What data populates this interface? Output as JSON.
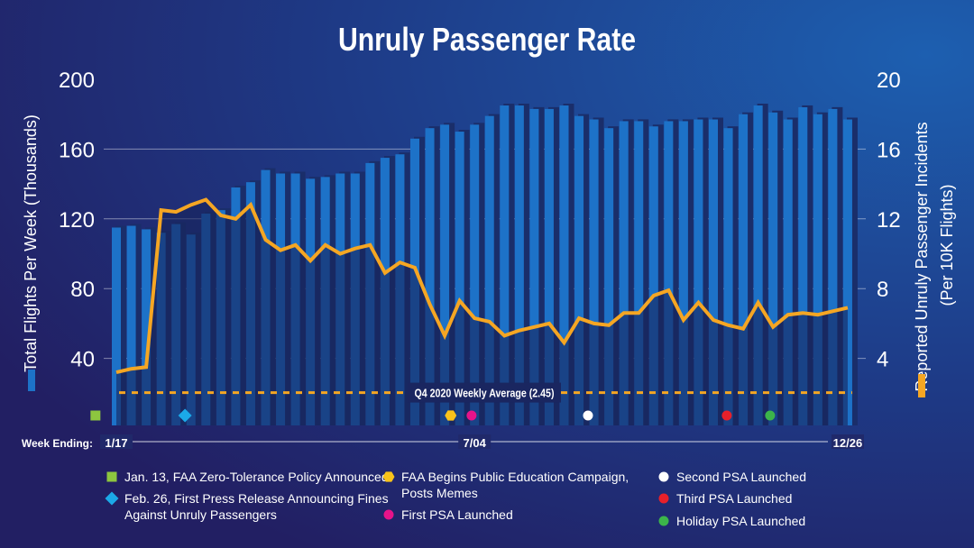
{
  "chart_data": {
    "type": "bar+line",
    "title": "Unruly Passenger Rate",
    "xlabel": "Week Ending:",
    "x_tick_labels": [
      {
        "week": 1,
        "label": "1/17"
      },
      {
        "week": 25,
        "label": "7/04"
      },
      {
        "week": 50,
        "label": "12/26"
      }
    ],
    "y_left": {
      "label": "Total Flights Per Week (Thousands)",
      "ticks": [
        40,
        80,
        120,
        160,
        200
      ],
      "range": [
        0,
        200
      ]
    },
    "y_right": {
      "label": "Reported Unruly Passenger Incidents",
      "sublabel": "(Per 10K Flights)",
      "ticks": [
        4,
        8,
        12,
        16,
        20
      ],
      "range": [
        0,
        20
      ]
    },
    "grid": true,
    "series": [
      {
        "kind": "bar",
        "axis": "left",
        "color": "#1d72c8",
        "values": [
          115,
          116,
          114,
          112,
          117,
          111,
          123,
          125,
          138,
          141,
          148,
          146,
          146,
          143,
          144,
          146,
          146,
          152,
          155,
          157,
          166,
          172,
          174,
          170,
          174,
          179,
          185,
          185,
          183,
          183,
          185,
          179,
          177,
          172,
          176,
          176,
          173,
          176,
          176,
          177,
          177,
          172,
          180,
          185,
          181,
          177,
          184,
          180,
          183,
          177
        ]
      },
      {
        "kind": "line",
        "axis": "right",
        "color": "#f5a623",
        "values": [
          3.2,
          3.4,
          3.5,
          12.5,
          12.4,
          12.8,
          13.1,
          12.2,
          12.0,
          12.8,
          10.8,
          10.2,
          10.5,
          9.6,
          10.5,
          10.0,
          10.3,
          10.5,
          8.9,
          9.5,
          9.2,
          7.1,
          5.3,
          7.3,
          6.3,
          6.1,
          5.3,
          5.6,
          5.8,
          6.0,
          4.9,
          6.3,
          6.0,
          5.9,
          6.6,
          6.6,
          7.6,
          7.9,
          6.2,
          7.2,
          6.2,
          5.9,
          5.7,
          7.2,
          5.8,
          6.5,
          6.6,
          6.5,
          6.7,
          6.9
        ]
      }
    ],
    "reference_line": {
      "label": "Q4 2020 Weekly Average (2.45)",
      "value": 2.45,
      "color": "#f5a623"
    },
    "events": [
      {
        "week": 0.6,
        "shape": "square",
        "color": "#8dc63f",
        "label": "Jan. 13, FAA Zero-Tolerance Policy Announced"
      },
      {
        "week": 6.6,
        "shape": "diamond",
        "color": "#1ba9e8",
        "label": "Feb. 26, First Press Release Announcing Fines",
        "label2": "Against Unruly Passengers"
      },
      {
        "week": 24.4,
        "shape": "hexagon",
        "color": "#f9c31a",
        "label": "FAA Begins Public Education Campaign,",
        "label2": "Posts Memes"
      },
      {
        "week": 25.8,
        "shape": "circle",
        "color": "#e6138a",
        "label": "First PSA Launched"
      },
      {
        "week": 33.6,
        "shape": "circle",
        "color": "#ffffff",
        "label": "Second PSA Launched"
      },
      {
        "week": 42.9,
        "shape": "circle",
        "color": "#e8202a",
        "label": "Third PSA Launched"
      },
      {
        "week": 45.8,
        "shape": "circle",
        "color": "#3cb54a",
        "label": "Holiday PSA Launched"
      }
    ]
  }
}
